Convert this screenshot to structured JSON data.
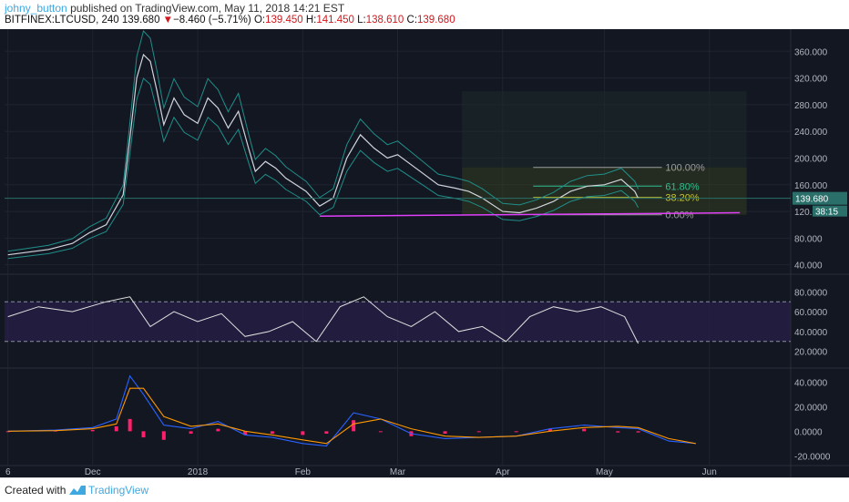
{
  "header": {
    "author": "johny_button",
    "published_text": " published on TradingView.com, May 11, 2018 14:21 EST"
  },
  "symbol_line": {
    "symbol": "BITFINEX:LTCUSD, 240",
    "last": "139.680",
    "change_arrow": "▼",
    "change": "−8.460 (−5.71%)",
    "o_label": "O:",
    "o": "139.450",
    "h_label": "H:",
    "h": "141.450",
    "l_label": "L:",
    "l": "138.610",
    "c_label": "C:",
    "c": "139.680"
  },
  "footer": {
    "created_with": "Created with",
    "brand": "TradingView"
  },
  "colors": {
    "background": "#131722",
    "grid": "#1f2431",
    "price_line": "#d1d4dc",
    "bollinger": "#1f8f8a",
    "fib_zone": "#3a4520",
    "fib_100": "#9e9e9e",
    "fib_618": "#2fbf8f",
    "fib_382": "#c8c832",
    "trendline": "#e040fb",
    "rsi": "#e0e0e0",
    "rsi_band": "#2a1f4a",
    "macd_hist": "#ff1f6a",
    "macd_line": "#2962ff",
    "signal_line": "#ff9800",
    "price_tag": "#2a6f6a"
  },
  "chart_data": [
    {
      "type": "line",
      "panel": "price",
      "x_tick_labels": [
        "6",
        "Dec",
        "2018",
        "Feb",
        "Mar",
        "Apr",
        "May",
        "Jun"
      ],
      "y_tick_labels": [
        "360.000",
        "320.000",
        "280.000",
        "240.000",
        "200.000",
        "160.000",
        "120.000",
        "80.000",
        "40.000"
      ],
      "ylim": [
        30,
        385
      ],
      "x": [
        "2017-11-06",
        "2017-11-18",
        "2017-11-25",
        "2017-11-30",
        "2017-12-05",
        "2017-12-10",
        "2017-12-12",
        "2017-12-14",
        "2017-12-16",
        "2017-12-18",
        "2017-12-20",
        "2017-12-22",
        "2017-12-25",
        "2017-12-28",
        "2018-01-01",
        "2018-01-04",
        "2018-01-07",
        "2018-01-10",
        "2018-01-13",
        "2018-01-16",
        "2018-01-18",
        "2018-01-21",
        "2018-01-24",
        "2018-01-27",
        "2018-01-30",
        "2018-02-02",
        "2018-02-06",
        "2018-02-10",
        "2018-02-14",
        "2018-02-18",
        "2018-02-22",
        "2018-02-26",
        "2018-03-01",
        "2018-03-05",
        "2018-03-09",
        "2018-03-13",
        "2018-03-18",
        "2018-03-22",
        "2018-03-26",
        "2018-04-01",
        "2018-04-06",
        "2018-04-11",
        "2018-04-16",
        "2018-04-21",
        "2018-04-26",
        "2018-05-01",
        "2018-05-06",
        "2018-05-10",
        "2018-05-11"
      ],
      "y": [
        55,
        63,
        72,
        88,
        100,
        145,
        230,
        320,
        355,
        345,
        300,
        250,
        290,
        265,
        252,
        290,
        275,
        245,
        270,
        215,
        180,
        195,
        185,
        170,
        160,
        150,
        128,
        140,
        200,
        235,
        215,
        200,
        205,
        190,
        175,
        160,
        155,
        150,
        140,
        120,
        118,
        125,
        135,
        150,
        158,
        160,
        168,
        150,
        139.68
      ],
      "last_price_label": "139.680",
      "countdown_label": "38:15",
      "fibonacci": [
        {
          "label": "100.00%",
          "value": 186
        },
        {
          "label": "61.80%",
          "value": 158
        },
        {
          "label": "38.20%",
          "value": 141
        },
        {
          "label": "0.00%",
          "value": 115
        }
      ],
      "trendline": {
        "from": [
          "2018-02-06",
          113
        ],
        "to": [
          "2018-06-10",
          118
        ]
      }
    },
    {
      "type": "line",
      "panel": "rsi",
      "y_tick_labels": [
        "80.0000",
        "60.0000",
        "40.0000",
        "20.0000"
      ],
      "ylim": [
        5,
        95
      ],
      "bands": [
        30,
        70
      ],
      "x": [
        "2017-11-06",
        "2017-11-15",
        "2017-11-25",
        "2017-12-05",
        "2017-12-12",
        "2017-12-18",
        "2017-12-25",
        "2018-01-01",
        "2018-01-08",
        "2018-01-15",
        "2018-01-22",
        "2018-01-29",
        "2018-02-05",
        "2018-02-12",
        "2018-02-19",
        "2018-02-26",
        "2018-03-05",
        "2018-03-12",
        "2018-03-19",
        "2018-03-26",
        "2018-04-02",
        "2018-04-09",
        "2018-04-16",
        "2018-04-23",
        "2018-04-30",
        "2018-05-07",
        "2018-05-11"
      ],
      "y": [
        55,
        65,
        60,
        70,
        75,
        45,
        60,
        50,
        58,
        35,
        40,
        50,
        30,
        65,
        75,
        55,
        45,
        60,
        40,
        45,
        30,
        55,
        65,
        60,
        65,
        55,
        28
      ]
    },
    {
      "type": "line",
      "panel": "macd",
      "y_tick_labels": [
        "40.0000",
        "20.0000",
        "0.0000",
        "-20.0000"
      ],
      "ylim": [
        -25,
        50
      ],
      "x": [
        "2017-11-06",
        "2017-11-20",
        "2017-12-01",
        "2017-12-08",
        "2017-12-12",
        "2017-12-16",
        "2017-12-22",
        "2017-12-30",
        "2018-01-07",
        "2018-01-15",
        "2018-01-23",
        "2018-02-01",
        "2018-02-08",
        "2018-02-16",
        "2018-02-24",
        "2018-03-05",
        "2018-03-15",
        "2018-03-25",
        "2018-04-05",
        "2018-04-15",
        "2018-04-25",
        "2018-05-05",
        "2018-05-11",
        "2018-05-20",
        "2018-05-28"
      ],
      "series": [
        {
          "values": [
            0,
            1,
            3,
            10,
            45,
            30,
            5,
            2,
            8,
            -3,
            -5,
            -10,
            -12,
            15,
            10,
            -2,
            -6,
            -5,
            -4,
            2,
            5,
            3,
            2,
            -8,
            -10
          ]
        },
        {
          "values": [
            0,
            0.5,
            2,
            6,
            35,
            35,
            12,
            4,
            6,
            0,
            -3,
            -7,
            -10,
            6,
            10,
            2,
            -4,
            -5,
            -4,
            0,
            3,
            4,
            3,
            -6,
            -10
          ]
        }
      ],
      "histogram": [
        0,
        0.5,
        1,
        4,
        10,
        -5,
        -7,
        -2,
        2,
        -3,
        -2,
        -3,
        -2,
        9,
        0,
        -4,
        -2,
        0,
        0,
        2,
        2,
        -1,
        -1
      ]
    }
  ]
}
